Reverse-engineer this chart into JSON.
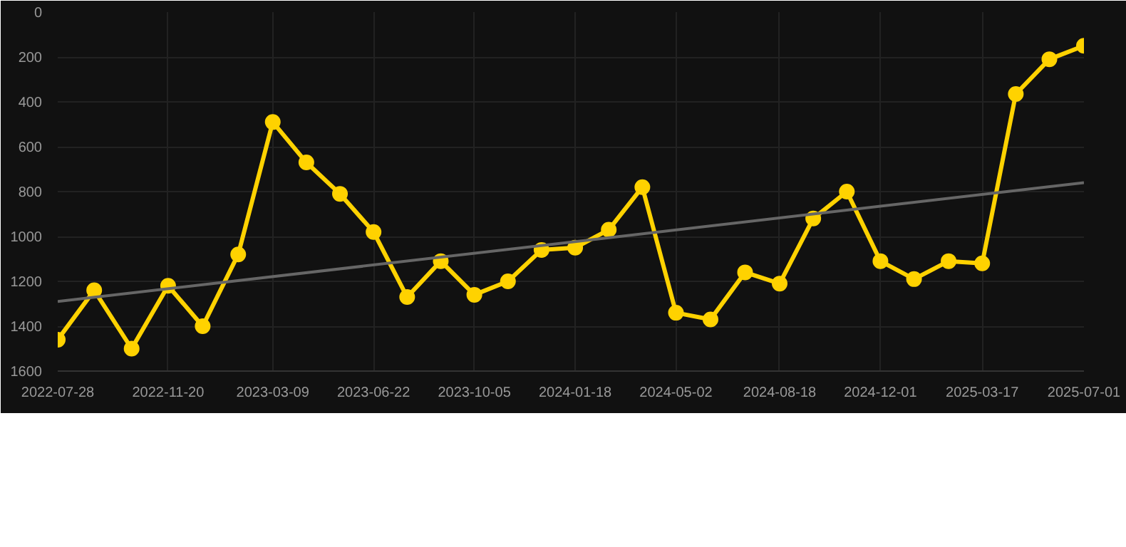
{
  "chart_data": {
    "type": "line",
    "x": [
      "2022-07-28",
      "2022-09-04",
      "2022-10-13",
      "2022-11-20",
      "2022-12-26",
      "2023-02-01",
      "2023-03-09",
      "2023-04-13",
      "2023-05-18",
      "2023-06-22",
      "2023-07-27",
      "2023-08-31",
      "2023-10-05",
      "2023-11-09",
      "2023-12-14",
      "2024-01-18",
      "2024-02-22",
      "2024-03-28",
      "2024-05-02",
      "2024-06-07",
      "2024-07-13",
      "2024-08-18",
      "2024-09-22",
      "2024-10-27",
      "2024-12-01",
      "2025-01-05",
      "2025-02-10",
      "2025-03-17",
      "2025-04-21",
      "2025-05-26",
      "2025-07-01"
    ],
    "series": [
      {
        "color": "#ffd200",
        "marker": "circle",
        "values": [
          1460,
          1240,
          1500,
          1220,
          1400,
          1080,
          490,
          670,
          810,
          980,
          1270,
          1110,
          1260,
          1200,
          1060,
          1050,
          970,
          780,
          1340,
          1370,
          1160,
          1210,
          920,
          800,
          1110,
          1190,
          1110,
          1120,
          365,
          210,
          150
        ]
      },
      {
        "type": "line",
        "color": "#666666",
        "marker": "none",
        "x": [
          "2022-07-28",
          "2025-07-01"
        ],
        "values": [
          1290,
          760
        ]
      }
    ],
    "xlim": [
      "2022-07-28",
      "2025-07-01"
    ],
    "xticks": [
      "2022-07-28",
      "2022-11-20",
      "2023-03-09",
      "2023-06-22",
      "2023-10-05",
      "2024-01-18",
      "2024-05-02",
      "2024-08-18",
      "2024-12-01",
      "2025-03-17",
      "2025-07-01"
    ],
    "ylim": [
      1600,
      0
    ],
    "yticks": [
      0,
      200,
      400,
      600,
      800,
      1000,
      1200,
      1400,
      1600
    ],
    "grid": true
  }
}
